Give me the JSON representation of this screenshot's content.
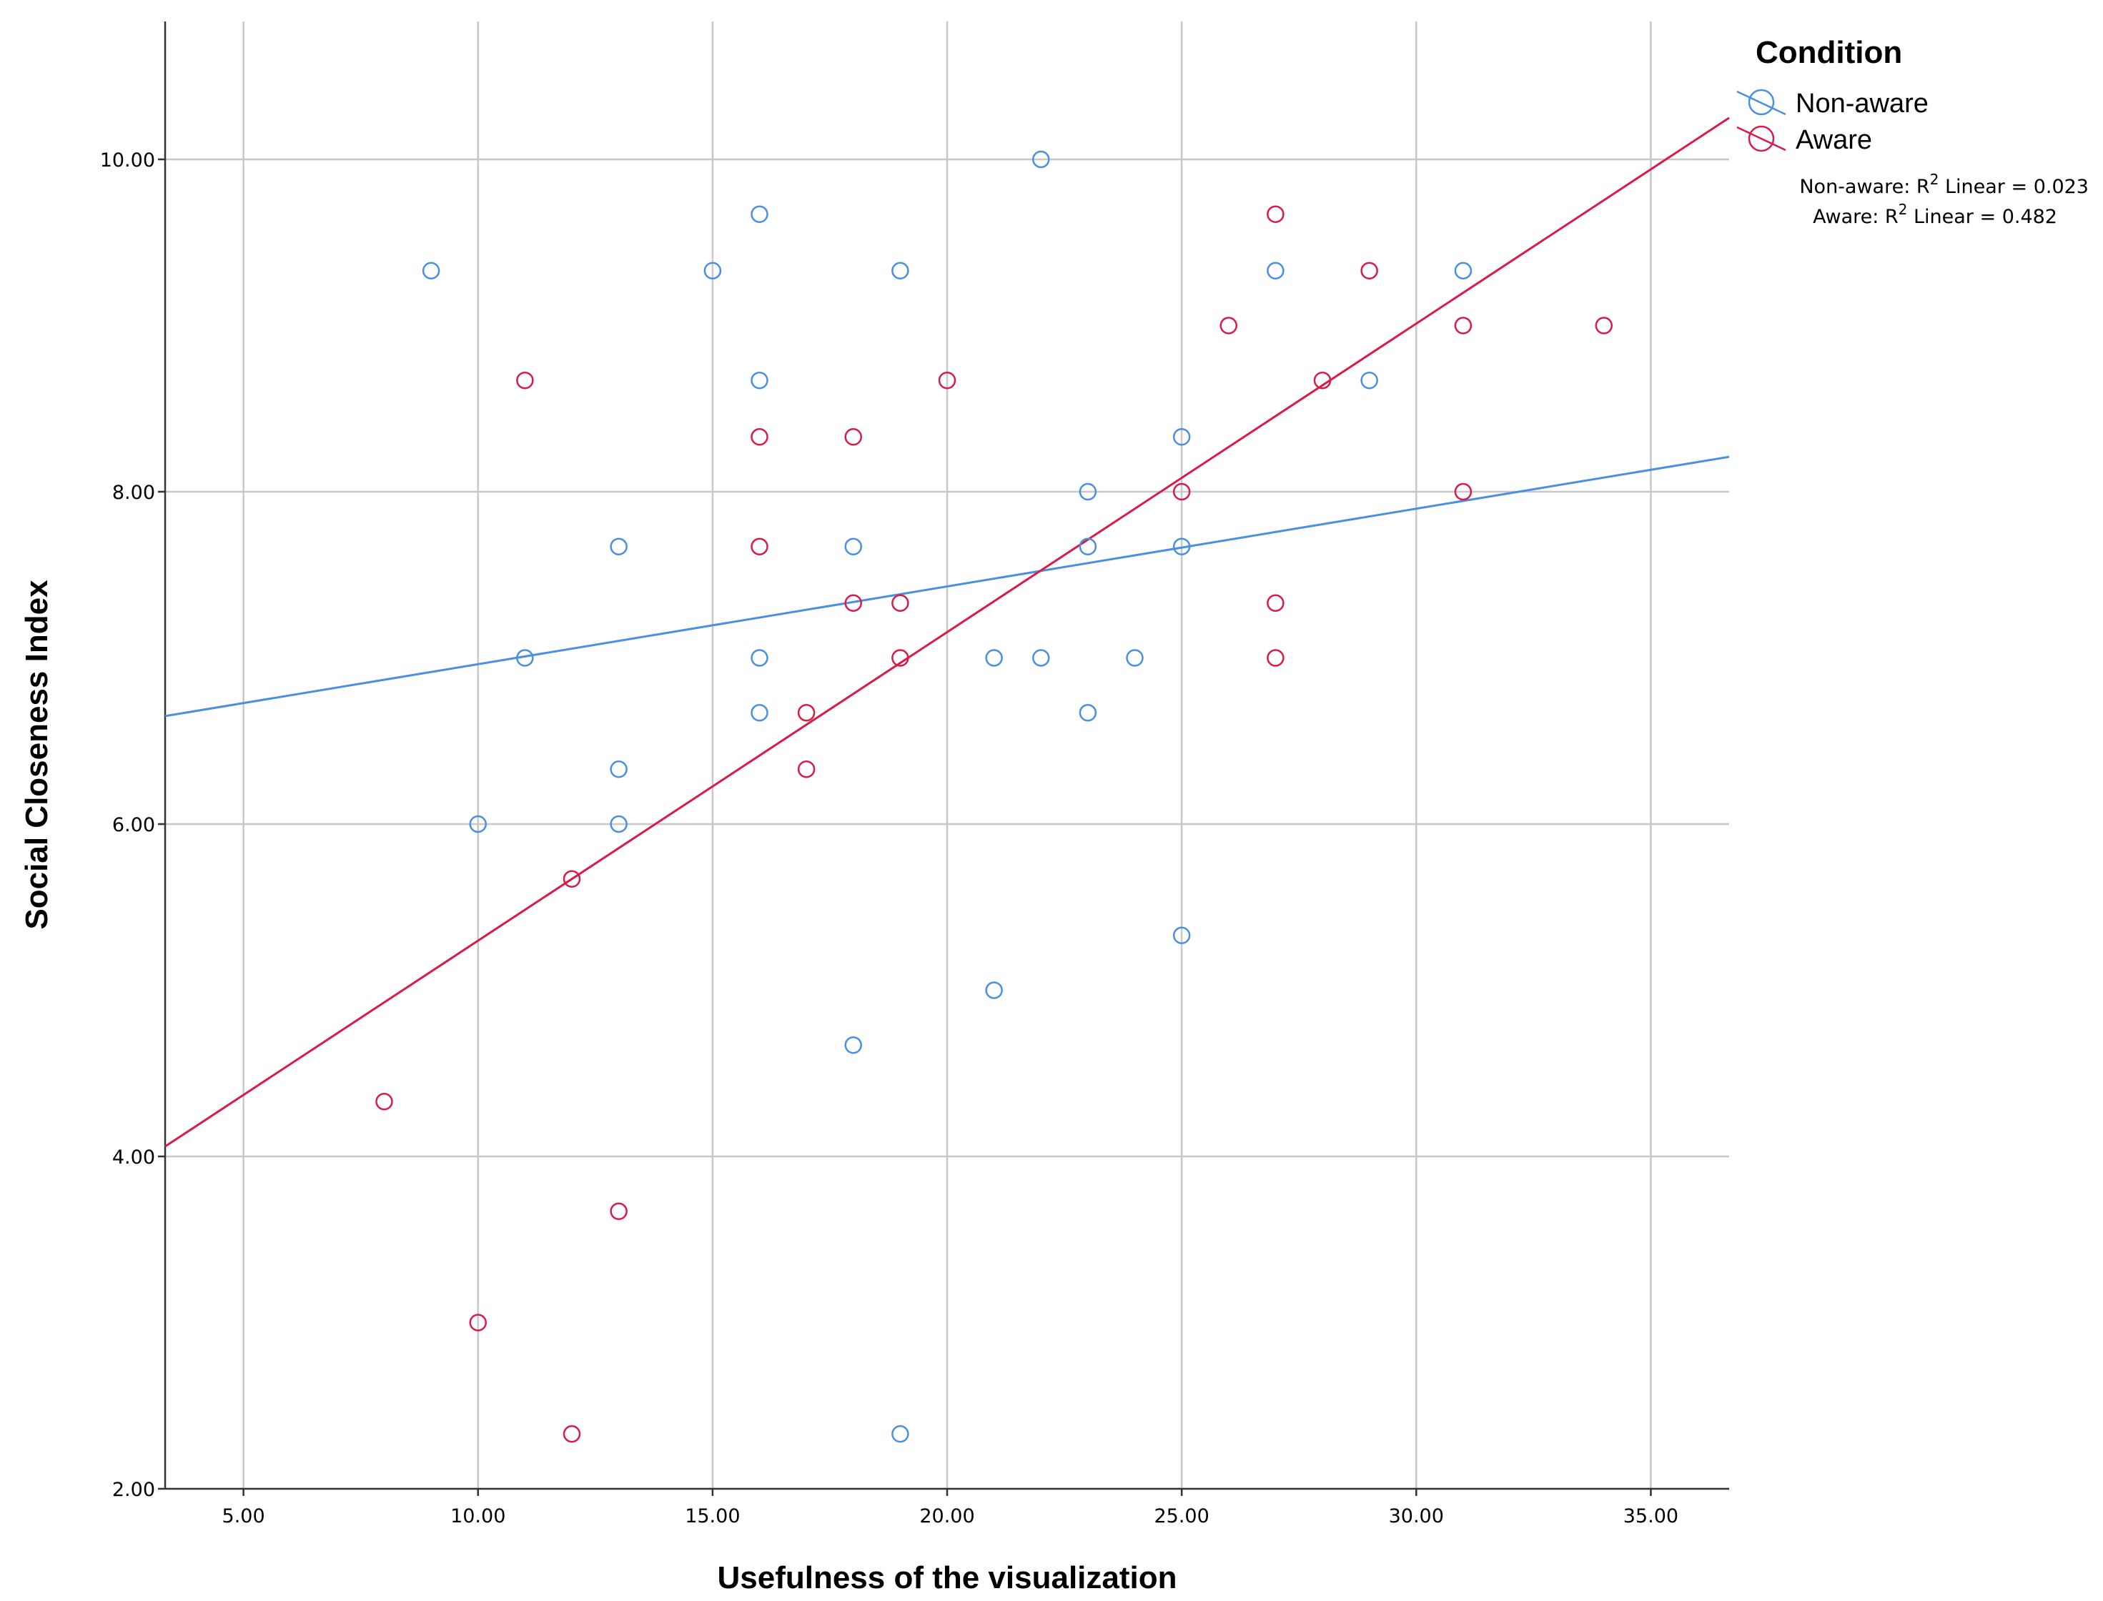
{
  "chart_data": {
    "type": "scatter",
    "xlabel": "Usefulness of the visualization",
    "ylabel": "Social Closeness Index",
    "xlim": [
      3.33,
      36.67
    ],
    "ylim": [
      2.0,
      10.83
    ],
    "x_ticks": [
      5,
      10,
      15,
      20,
      25,
      30,
      35
    ],
    "x_tick_labels": [
      "5.00",
      "10.00",
      "15.00",
      "20.00",
      "25.00",
      "30.00",
      "35.00"
    ],
    "y_ticks": [
      2,
      4,
      6,
      8,
      10
    ],
    "y_tick_labels": [
      "2.00",
      "4.00",
      "6.00",
      "8.00",
      "10.00"
    ],
    "grid": true,
    "legend": {
      "title": "Condition",
      "position": "top-right",
      "r2_labels": {
        "non_aware_prefix": "Non-aware: R",
        "aware_prefix": "Aware: R",
        "superscript": "2",
        "non_aware_suffix": " Linear = 0.023",
        "aware_suffix": " Linear = 0.482"
      }
    },
    "series": [
      {
        "name": "Non-aware",
        "color": "#4a90e2",
        "r2_linear": 0.023,
        "fit_line": {
          "x": [
            3.33,
            36.67
          ],
          "y": [
            6.65,
            8.21
          ]
        },
        "points": [
          [
            9,
            9.33
          ],
          [
            11,
            7.0
          ],
          [
            10,
            6.0
          ],
          [
            13,
            7.67
          ],
          [
            13,
            6.33
          ],
          [
            13,
            6.0
          ],
          [
            15,
            9.33
          ],
          [
            16,
            9.67
          ],
          [
            16,
            8.67
          ],
          [
            16,
            7.0
          ],
          [
            16,
            6.67
          ],
          [
            18,
            7.67
          ],
          [
            18,
            4.67
          ],
          [
            19,
            9.33
          ],
          [
            19,
            2.33
          ],
          [
            21,
            7.0
          ],
          [
            21,
            5.0
          ],
          [
            22,
            10.0
          ],
          [
            22,
            7.0
          ],
          [
            23,
            8.0
          ],
          [
            23,
            7.67
          ],
          [
            23,
            6.67
          ],
          [
            24,
            7.0
          ],
          [
            25,
            8.33
          ],
          [
            25,
            7.67
          ],
          [
            25,
            5.33
          ],
          [
            27,
            9.33
          ],
          [
            29,
            8.67
          ],
          [
            31,
            9.33
          ]
        ]
      },
      {
        "name": "Aware",
        "color": "#d81b47",
        "r2_linear": 0.482,
        "fit_line": {
          "x": [
            3.33,
            36.67
          ],
          "y": [
            4.06,
            10.25
          ]
        },
        "points": [
          [
            8,
            4.33
          ],
          [
            10,
            3.0
          ],
          [
            11,
            8.67
          ],
          [
            12,
            5.67
          ],
          [
            12,
            2.33
          ],
          [
            13,
            3.67
          ],
          [
            16,
            8.33
          ],
          [
            16,
            7.67
          ],
          [
            17,
            6.67
          ],
          [
            17,
            6.33
          ],
          [
            18,
            8.33
          ],
          [
            18,
            7.33
          ],
          [
            19,
            7.33
          ],
          [
            19,
            7.0
          ],
          [
            20,
            8.67
          ],
          [
            25,
            8.0
          ],
          [
            26,
            9.0
          ],
          [
            27,
            9.67
          ],
          [
            27,
            7.33
          ],
          [
            27,
            7.0
          ],
          [
            28,
            8.67
          ],
          [
            29,
            9.33
          ],
          [
            31,
            9.0
          ],
          [
            31,
            8.0
          ],
          [
            34,
            9.0
          ]
        ]
      }
    ]
  }
}
